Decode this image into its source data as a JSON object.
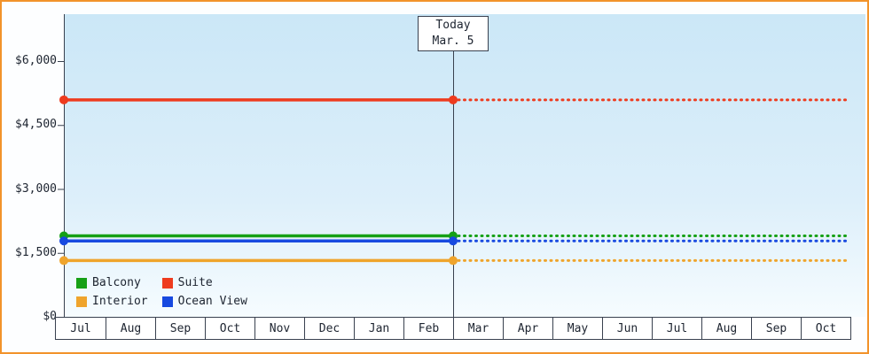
{
  "chart_data": {
    "type": "line",
    "title": "",
    "x_axis": {
      "months": [
        "Jul",
        "Aug",
        "Sep",
        "Oct",
        "Nov",
        "Dec",
        "Jan",
        "Feb",
        "Mar",
        "Apr",
        "May",
        "Jun",
        "Jul",
        "Aug",
        "Sep",
        "Oct"
      ]
    },
    "y_axis": {
      "tick_labels": [
        "$0",
        "$1,500",
        "$3,000",
        "$4,500",
        "$6,000"
      ],
      "tick_values": [
        0,
        1500,
        3000,
        4500,
        6000
      ],
      "range_max": 6200
    },
    "today": {
      "label_line1": "Today",
      "label_line2": "Mar. 5",
      "month_index": 8
    },
    "series": [
      {
        "name": "Balcony",
        "color": "#16a016",
        "value": 1900,
        "past_style": "solid",
        "future_style": "dotted"
      },
      {
        "name": "Suite",
        "color": "#ee3b1e",
        "value": 5090,
        "past_style": "solid",
        "future_style": "dotted"
      },
      {
        "name": "Interior",
        "color": "#efa42c",
        "value": 1320,
        "past_style": "solid",
        "future_style": "dotted"
      },
      {
        "name": "Ocean View",
        "color": "#1749e0",
        "value": 1780,
        "past_style": "solid",
        "future_style": "dotted"
      }
    ],
    "legend_order": [
      "Balcony",
      "Suite",
      "Interior",
      "Ocean View"
    ],
    "legend_position": "bottom-left",
    "grid": false
  },
  "colors": {
    "frame_border": "#f2932b",
    "axis_line": "#39414f",
    "text": "#1d2430",
    "plot_bg_top": "#cbe7f7",
    "plot_bg_bottom": "#f6fcff",
    "cell_bg": "#ffffff"
  }
}
